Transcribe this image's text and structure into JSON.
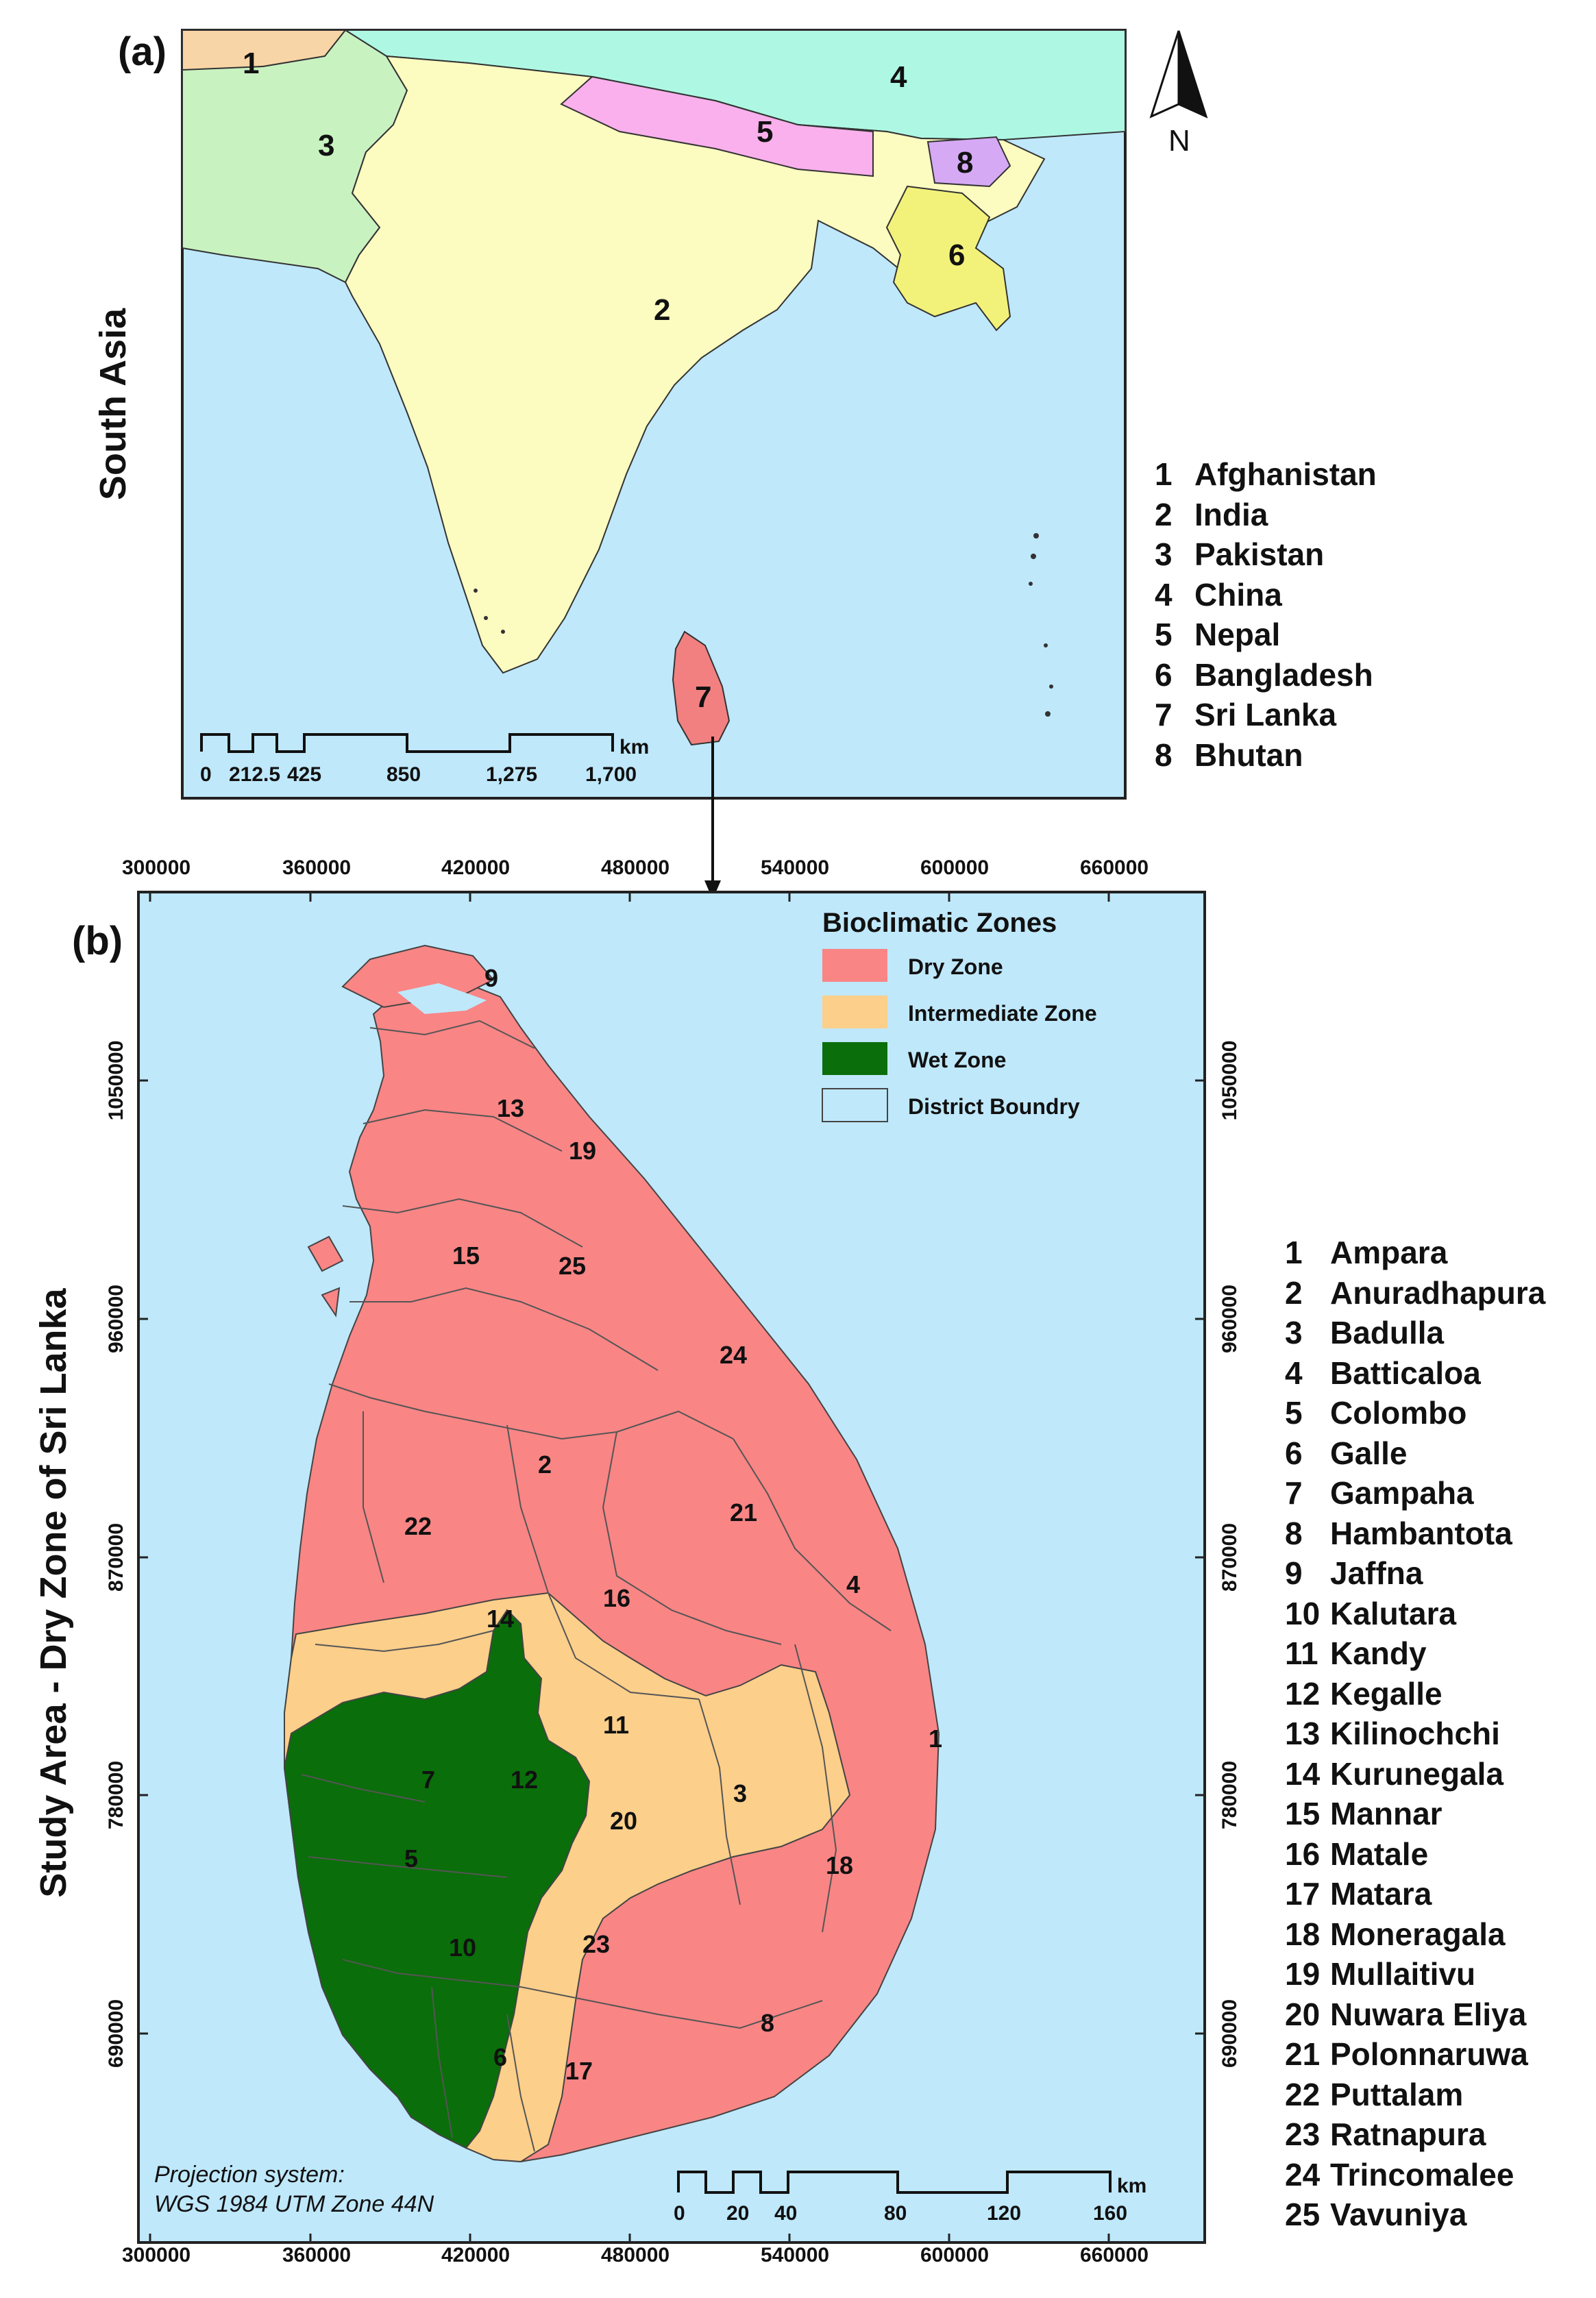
{
  "panel_a": {
    "label": "(a)",
    "side_title": "South Asia",
    "north_label": "N",
    "map_numbers": [
      "1",
      "2",
      "3",
      "4",
      "5",
      "6",
      "7",
      "8"
    ],
    "legend": [
      {
        "num": "1",
        "name": "Afghanistan"
      },
      {
        "num": "2",
        "name": "India"
      },
      {
        "num": "3",
        "name": "Pakistan"
      },
      {
        "num": "4",
        "name": "China"
      },
      {
        "num": "5",
        "name": "Nepal"
      },
      {
        "num": "6",
        "name": "Bangladesh"
      },
      {
        "num": "7",
        "name": "Sri Lanka"
      },
      {
        "num": "8",
        "name": "Bhutan"
      }
    ],
    "scale_bar": {
      "unit": "km",
      "ticks": [
        "0",
        "212.5",
        "425",
        "850",
        "1,275",
        "1,700"
      ]
    },
    "colors": {
      "sea": "#bfe8fb",
      "afghanistan": "#f8d5a6",
      "india": "#fcfbc0",
      "pakistan": "#c9f2c1",
      "china": "#aef8e3",
      "nepal": "#f9b0ec",
      "bangladesh": "#f2f27a",
      "sri_lanka": "#f28080",
      "bhutan": "#d6a9f5"
    }
  },
  "panel_b": {
    "label": "(b)",
    "side_title": "Study Area - Dry  Zone of  Sri Lanka",
    "x_ticks": [
      "300000",
      "360000",
      "420000",
      "480000",
      "540000",
      "600000",
      "660000"
    ],
    "y_ticks": [
      "1050000",
      "960000",
      "870000",
      "780000",
      "690000"
    ],
    "legend_title": "Bioclimatic Zones",
    "zones": [
      {
        "name": "Dry Zone",
        "color": "#f98585"
      },
      {
        "name": "Intermediate Zone",
        "color": "#fccf8b"
      },
      {
        "name": "Wet Zone",
        "color": "#0a6e0a"
      },
      {
        "name": "District Boundry",
        "color": "#bfe8fb"
      }
    ],
    "projection_line1": "Projection system:",
    "projection_line2": "WGS 1984 UTM Zone 44N",
    "scale_bar": {
      "unit": "km",
      "ticks": [
        "0",
        "20",
        "40",
        "80",
        "120",
        "160"
      ]
    },
    "districts": [
      {
        "num": "1",
        "name": "Ampara"
      },
      {
        "num": "2",
        "name": "Anuradhapura"
      },
      {
        "num": "3",
        "name": "Badulla"
      },
      {
        "num": "4",
        "name": "Batticaloa"
      },
      {
        "num": "5",
        "name": "Colombo"
      },
      {
        "num": "6",
        "name": "Galle"
      },
      {
        "num": "7",
        "name": "Gampaha"
      },
      {
        "num": "8",
        "name": "Hambantota"
      },
      {
        "num": "9",
        "name": "Jaffna"
      },
      {
        "num": "10",
        "name": "Kalutara"
      },
      {
        "num": "11",
        "name": "Kandy"
      },
      {
        "num": "12",
        "name": "Kegalle"
      },
      {
        "num": "13",
        "name": "Kilinochchi"
      },
      {
        "num": "14",
        "name": "Kurunegala"
      },
      {
        "num": "15",
        "name": "Mannar"
      },
      {
        "num": "16",
        "name": "Matale"
      },
      {
        "num": "17",
        "name": "Matara"
      },
      {
        "num": "18",
        "name": "Moneragala"
      },
      {
        "num": "19",
        "name": "Mullaitivu"
      },
      {
        "num": "20",
        "name": "Nuwara Eliya"
      },
      {
        "num": "21",
        "name": "Polonnaruwa"
      },
      {
        "num": "22",
        "name": "Puttalam"
      },
      {
        "num": "23",
        "name": "Ratnapura"
      },
      {
        "num": "24",
        "name": "Trincomalee"
      },
      {
        "num": "25",
        "name": "Vavuniya"
      }
    ]
  }
}
